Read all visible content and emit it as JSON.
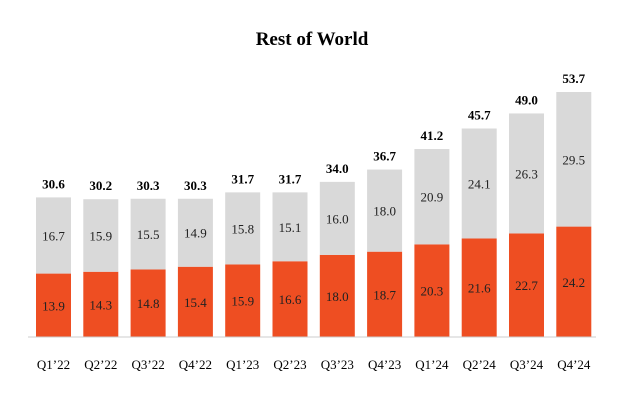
{
  "chart_data": {
    "type": "bar",
    "stacked": true,
    "title": "Rest of World",
    "categories": [
      "Q1’22",
      "Q2’22",
      "Q3’22",
      "Q4’22",
      "Q1’23",
      "Q2’23",
      "Q3’23",
      "Q4’23",
      "Q1’24",
      "Q2’24",
      "Q3’24",
      "Q4’24"
    ],
    "series": [
      {
        "name": "bottom",
        "color": "#EE4E22",
        "values": [
          13.9,
          14.3,
          14.8,
          15.4,
          15.9,
          16.6,
          18.0,
          18.7,
          20.3,
          21.6,
          22.7,
          24.2
        ]
      },
      {
        "name": "top",
        "color": "#D9D9D9",
        "values": [
          16.7,
          15.9,
          15.5,
          14.9,
          15.8,
          15.1,
          16.0,
          18.0,
          20.9,
          24.1,
          26.3,
          29.5
        ]
      }
    ],
    "totals": [
      "30.6",
      "30.2",
      "30.3",
      "30.3",
      "31.7",
      "31.7",
      "34.0",
      "36.7",
      "41.2",
      "45.7",
      "49.0",
      "53.7"
    ],
    "bottom_labels": [
      "13.9",
      "14.3",
      "14.8",
      "15.4",
      "15.9",
      "16.6",
      "18.0",
      "18.7",
      "20.3",
      "21.6",
      "22.7",
      "24.2"
    ],
    "top_labels": [
      "16.7",
      "15.9",
      "15.5",
      "14.9",
      "15.8",
      "15.1",
      "16.0",
      "18.0",
      "20.9",
      "24.1",
      "26.3",
      "29.5"
    ],
    "ylim": [
      0,
      53.7
    ],
    "xlabel": "",
    "ylabel": "",
    "grid": false,
    "legend": "none"
  }
}
